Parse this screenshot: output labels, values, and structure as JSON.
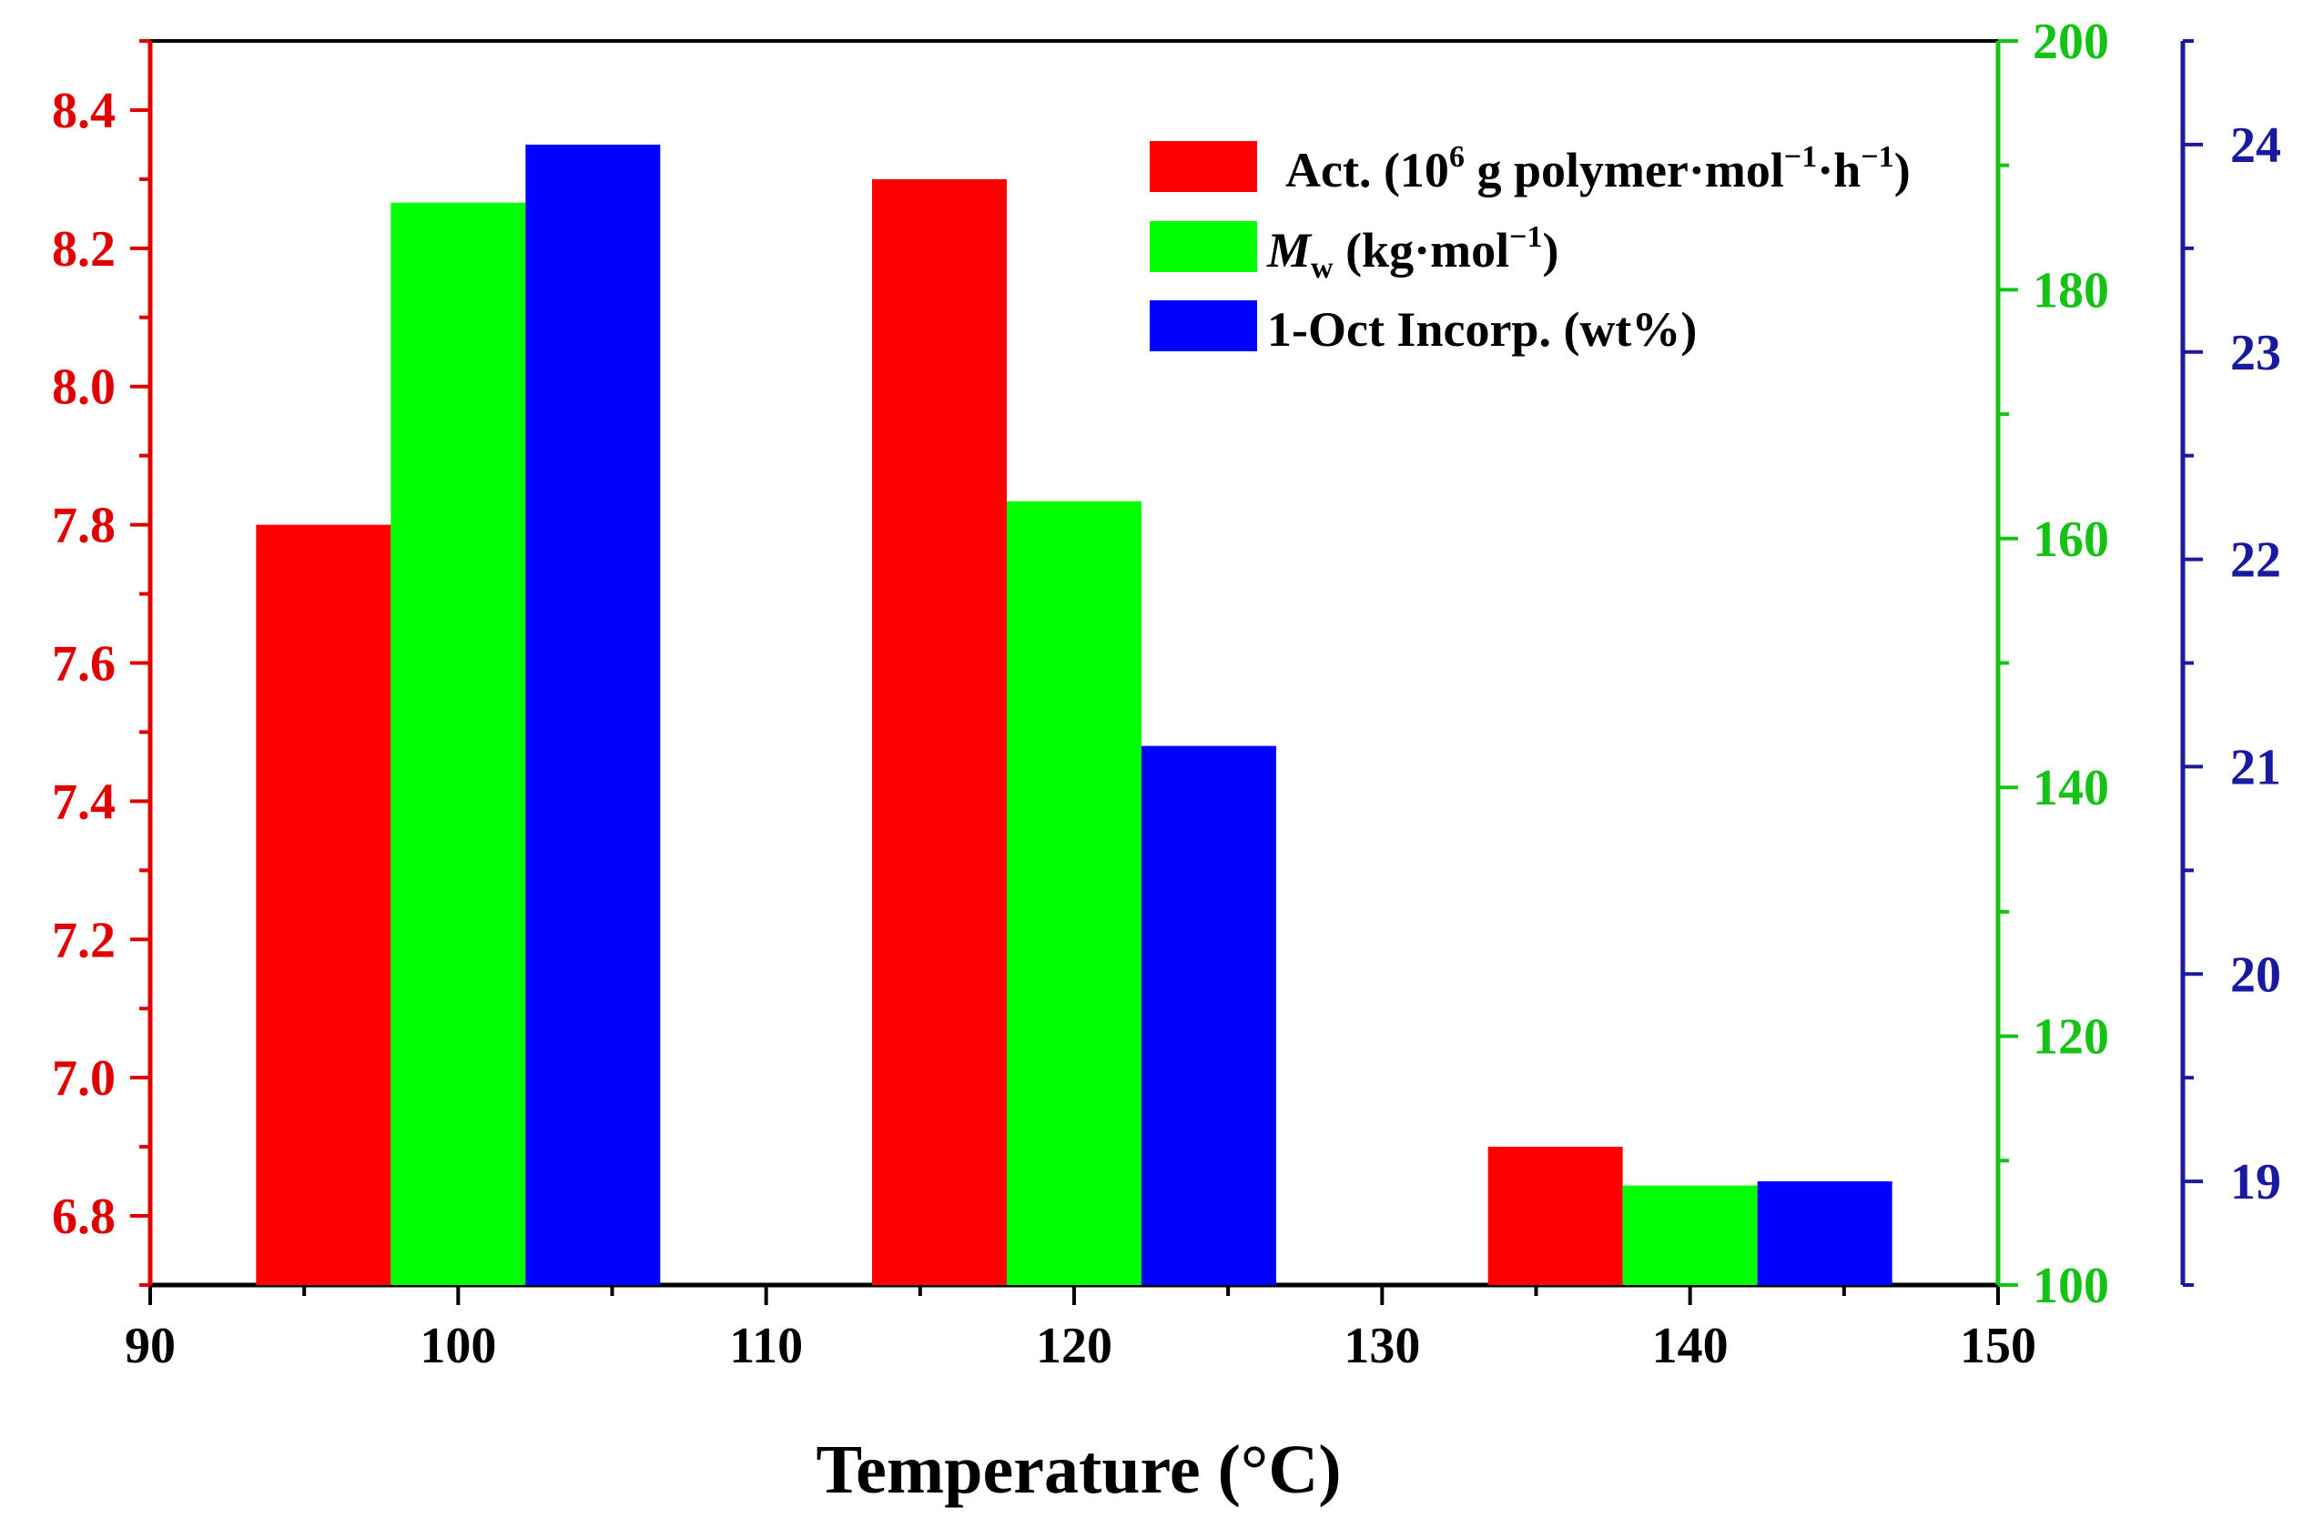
{
  "colors": {
    "activity": "#ff0000",
    "mw": "#00ff00",
    "incorp": "#0000ff",
    "left_axis": "#e00000",
    "green_axis": "#17c217",
    "blue_axis": "#1a1aa0"
  },
  "chart_data": {
    "type": "bar",
    "xlabel": "Temperature (°C)",
    "xlim": [
      90,
      150
    ],
    "x_ticks": [
      "90",
      "100",
      "110",
      "120",
      "130",
      "140",
      "150"
    ],
    "categories": [
      100,
      120,
      140
    ],
    "series": [
      {
        "name": "Act. (10⁶ g polymer·mol⁻¹·h⁻¹)",
        "axis": "left",
        "values": [
          7.8,
          8.3,
          6.9
        ]
      },
      {
        "name": "Mw (kg·mol⁻¹)",
        "axis": "right1",
        "values": [
          187,
          163,
          108
        ]
      },
      {
        "name": "1-Oct Incorp. (wt%)",
        "axis": "right2",
        "values": [
          24.0,
          21.1,
          19.0
        ]
      }
    ],
    "y_left": {
      "lim": [
        6.7,
        8.5
      ],
      "ticks": [
        "6.8",
        "7.0",
        "7.2",
        "7.4",
        "7.6",
        "7.8",
        "8.0",
        "8.2",
        "8.4"
      ]
    },
    "y_right1": {
      "lim": [
        100,
        200
      ],
      "ticks": [
        "100",
        "120",
        "140",
        "160",
        "180",
        "200"
      ]
    },
    "y_right2": {
      "lim": [
        18.5,
        24.5
      ],
      "ticks": [
        "19",
        "20",
        "21",
        "22",
        "23",
        "24"
      ]
    },
    "legend": {
      "position": "top-right",
      "act": {
        "prefix": "Act. (10",
        "sup1": "6",
        "mid": " g polymer·mol",
        "sup2": "−1",
        "mid2": "·h",
        "sup3": "−1",
        "suffix": ")"
      },
      "mw": {
        "italic": "M",
        "sub": "w",
        "rest": " (kg·mol",
        "sup": "−1",
        "suffix": ")"
      },
      "incorp": {
        "label": "1-Oct Incorp. (wt%)"
      }
    }
  }
}
